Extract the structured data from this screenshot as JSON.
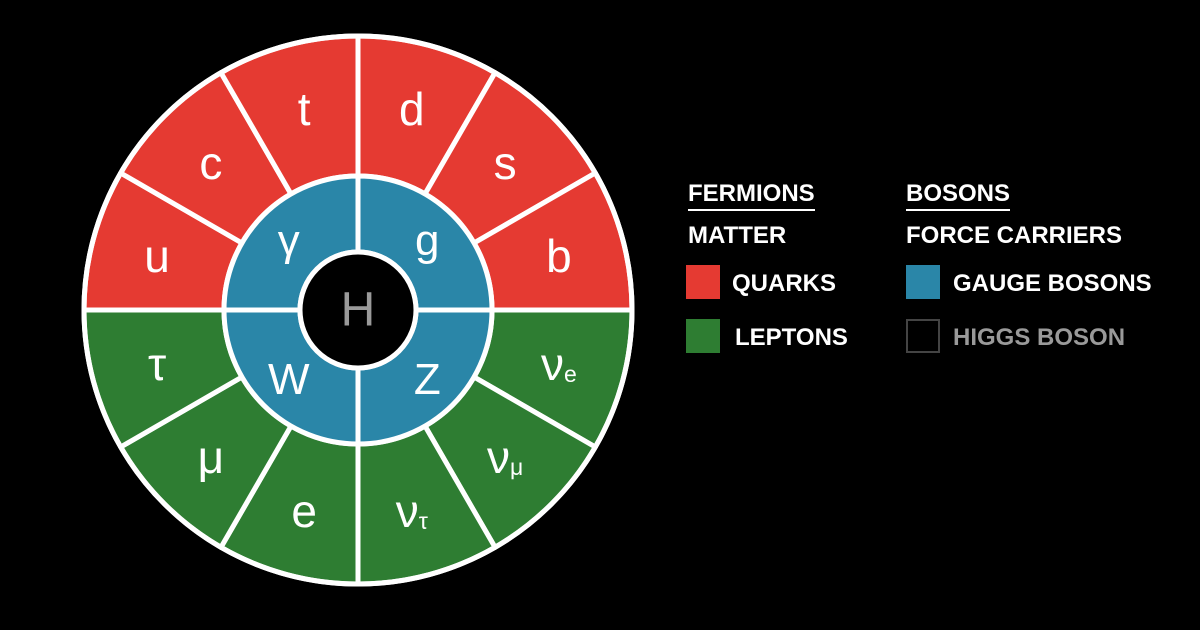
{
  "colors": {
    "quark": "#e53a32",
    "lepton": "#2e7d32",
    "gauge": "#2a86a8",
    "higgs": "#000000",
    "divider": "#ffffff",
    "background": "#000000",
    "text": "#ffffff",
    "muted_text": "#9a9a9a"
  },
  "wheel": {
    "outer_quarks": [
      "u",
      "c",
      "t",
      "d",
      "s",
      "b"
    ],
    "outer_leptons": [
      "νe",
      "νμ",
      "ντ",
      "e",
      "μ",
      "τ"
    ],
    "gauge_bosons": [
      "g",
      "Z",
      "W",
      "γ"
    ],
    "higgs": "H"
  },
  "legend": {
    "fermions": {
      "heading": "FERMIONS",
      "subheading": "MATTER"
    },
    "bosons": {
      "heading": "BOSONS",
      "subheading": "FORCE CARRIERS"
    },
    "items": {
      "quarks": "QUARKS",
      "leptons": "LEPTONS",
      "gauge_bosons": "GAUGE BOSONS",
      "higgs_boson": "HIGGS BOSON"
    }
  }
}
